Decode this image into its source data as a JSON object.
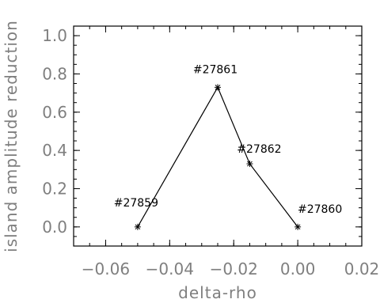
{
  "chart_data": {
    "type": "line",
    "title": "",
    "xlabel": "delta-rho",
    "ylabel": "island amplitude reduction",
    "xlim": [
      -0.07,
      0.02
    ],
    "ylim": [
      -0.1,
      1.05
    ],
    "xticks": [
      -0.06,
      -0.04,
      -0.02,
      0.0,
      0.02
    ],
    "xtick_labels": [
      "−0.06",
      "−0.04",
      "−0.02",
      "0.00",
      "0.02"
    ],
    "yticks": [
      0.0,
      0.2,
      0.4,
      0.6,
      0.8,
      1.0
    ],
    "ytick_labels": [
      "0.0",
      "0.2",
      "0.4",
      "0.6",
      "0.8",
      "1.0"
    ],
    "grid": false,
    "legend": "none",
    "series": [
      {
        "x": [
          -0.05,
          -0.025,
          -0.015,
          0.0
        ],
        "y": [
          0.0,
          0.73,
          0.33,
          0.0
        ],
        "labels": [
          "#27859",
          "#27861",
          "#27862",
          "#27860"
        ],
        "marker": "asterisk",
        "color": "#000000"
      }
    ],
    "axis_color": "#000000",
    "label_color": "#7f7f7f"
  }
}
